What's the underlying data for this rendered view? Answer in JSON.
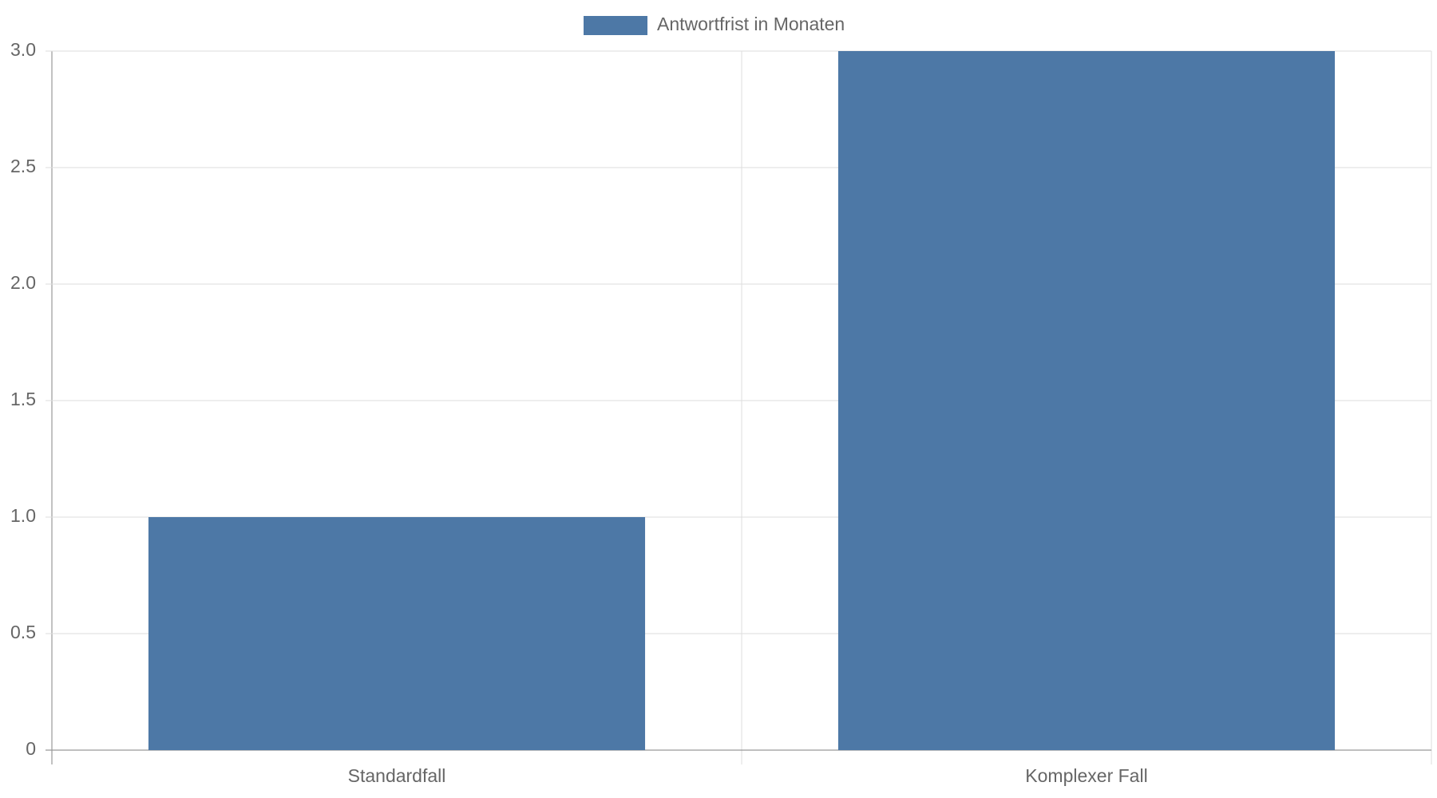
{
  "chart_data": {
    "type": "bar",
    "categories": [
      "Standardfall",
      "Komplexer Fall"
    ],
    "series": [
      {
        "name": "Antwortfrist in Monaten",
        "color": "#4d78a6",
        "values": [
          1,
          3
        ]
      }
    ],
    "ylim": [
      0,
      3
    ],
    "yticks": [
      0,
      0.5,
      {
        "value": 1,
        "label": "1.0"
      },
      1.5,
      {
        "value": 2,
        "label": "2.0"
      },
      2.5,
      {
        "value": 3,
        "label": "3.0"
      }
    ],
    "grid": true,
    "legend": "top"
  }
}
